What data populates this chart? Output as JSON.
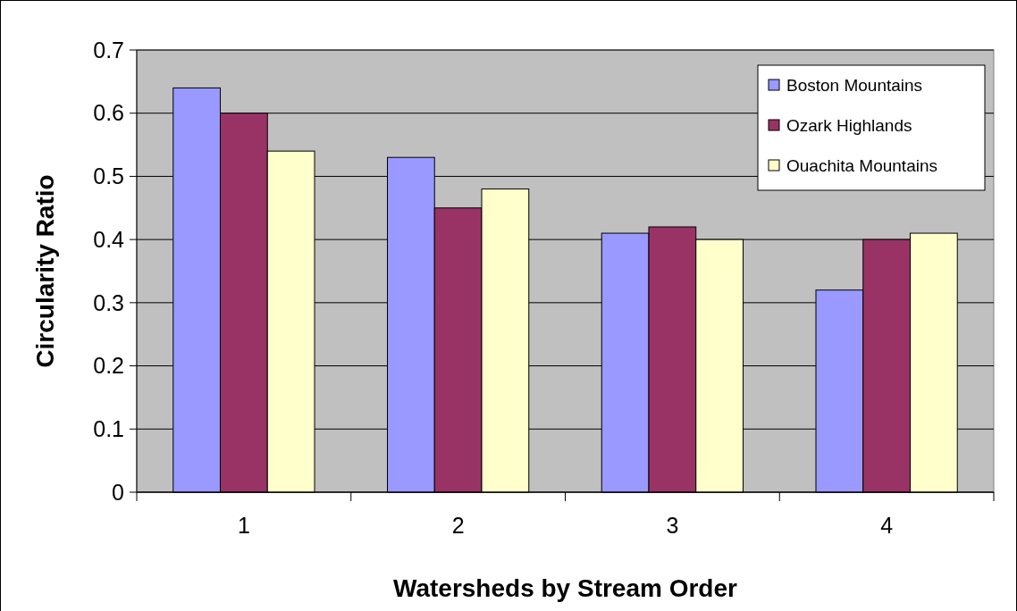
{
  "chart_data": {
    "type": "bar",
    "xlabel": "Watersheds by Stream Order",
    "ylabel": "Circularity Ratio",
    "categories": [
      "1",
      "2",
      "3",
      "4"
    ],
    "series": [
      {
        "name": "Boston Mountains",
        "color": "#9999ff",
        "values": [
          0.64,
          0.53,
          0.41,
          0.32
        ]
      },
      {
        "name": "Ozark Highlands",
        "color": "#993366",
        "values": [
          0.6,
          0.45,
          0.42,
          0.4
        ]
      },
      {
        "name": "Ouachita Mountains",
        "color": "#ffffcc",
        "values": [
          0.54,
          0.48,
          0.4,
          0.41
        ]
      }
    ],
    "ylim": [
      0,
      0.7
    ],
    "yticks": [
      0,
      0.1,
      0.2,
      0.3,
      0.4,
      0.5,
      0.6,
      0.7
    ],
    "grid": "y",
    "legend": "top right"
  }
}
